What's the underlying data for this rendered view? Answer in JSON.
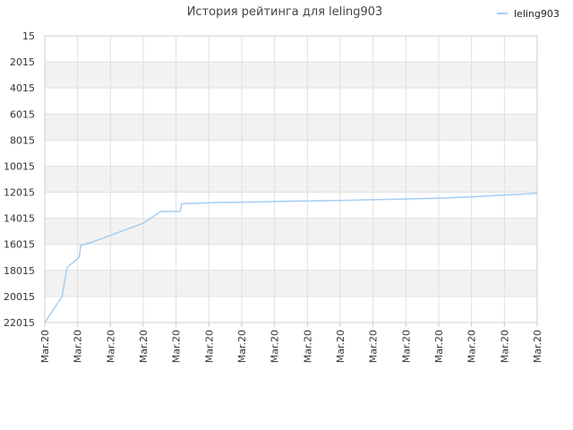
{
  "chart_data": {
    "type": "line",
    "title": "История рейтинга для leling903",
    "xlabel": "",
    "ylabel": "",
    "y_inverted": true,
    "ylim": [
      15,
      22015
    ],
    "y_ticks": [
      "15",
      "2015",
      "4015",
      "6015",
      "8015",
      "10015",
      "12015",
      "14015",
      "16015",
      "18015",
      "20015",
      "22015"
    ],
    "x_ticks": [
      "Mar.20",
      "Mar.20",
      "Mar.20",
      "Mar.20",
      "Mar.20",
      "Mar.20",
      "Mar.20",
      "Mar.20",
      "Mar.20",
      "Mar.20",
      "Mar.20",
      "Mar.20",
      "Mar.20",
      "Mar.20",
      "Mar.20",
      "Mar.20"
    ],
    "grid": true,
    "legend_position": "top-right",
    "colors": {
      "series": "#a6cdf2",
      "band": "#f2f2f2",
      "grid": "#e0e0e0",
      "axis": "#cccccc"
    },
    "series": [
      {
        "name": "leling903",
        "x": [
          0.0,
          0.035,
          0.045,
          0.07,
          0.073,
          0.1,
          0.2,
          0.235,
          0.275,
          0.278,
          0.32,
          0.35,
          0.4,
          0.45,
          0.5,
          0.55,
          0.6,
          0.65,
          0.7,
          0.75,
          0.8,
          0.85,
          0.9,
          0.95,
          1.0
        ],
        "values": [
          22015,
          20015,
          17800,
          17000,
          16100,
          15800,
          14400,
          13500,
          13500,
          12900,
          12850,
          12800,
          12780,
          12750,
          12700,
          12680,
          12650,
          12600,
          12560,
          12520,
          12480,
          12400,
          12300,
          12200,
          12100
        ]
      }
    ]
  }
}
